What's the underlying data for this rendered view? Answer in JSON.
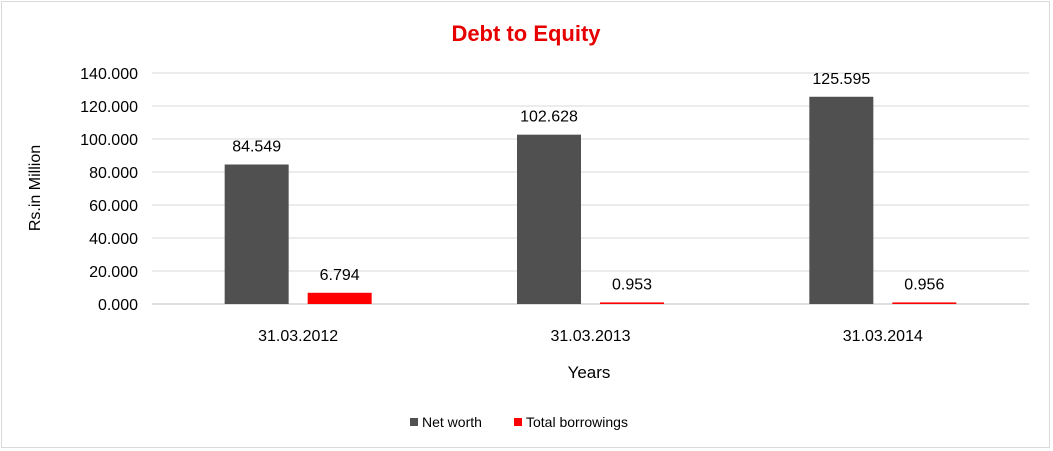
{
  "chart_data": {
    "type": "bar",
    "title": "Debt to Equity",
    "title_color": "#e60000",
    "xlabel": "Years",
    "ylabel": "Rs.in Million",
    "categories": [
      "31.03.2012",
      "31.03.2013",
      "31.03.2014"
    ],
    "series": [
      {
        "name": "Net worth",
        "color": "#505050",
        "values": [
          84.549,
          102.628,
          125.595
        ]
      },
      {
        "name": "Total borrowings",
        "color": "#ff0000",
        "values": [
          6.794,
          0.953,
          0.956
        ]
      }
    ],
    "data_labels": [
      [
        "84.549",
        "102.628",
        "125.595"
      ],
      [
        "6.794",
        "0.953",
        "0.956"
      ]
    ],
    "ylim": [
      0,
      140
    ],
    "yticks": [
      "0.000",
      "20.000",
      "40.000",
      "60.000",
      "80.000",
      "100.000",
      "120.000",
      "140.000"
    ],
    "grid": true,
    "legend_position": "bottom"
  }
}
